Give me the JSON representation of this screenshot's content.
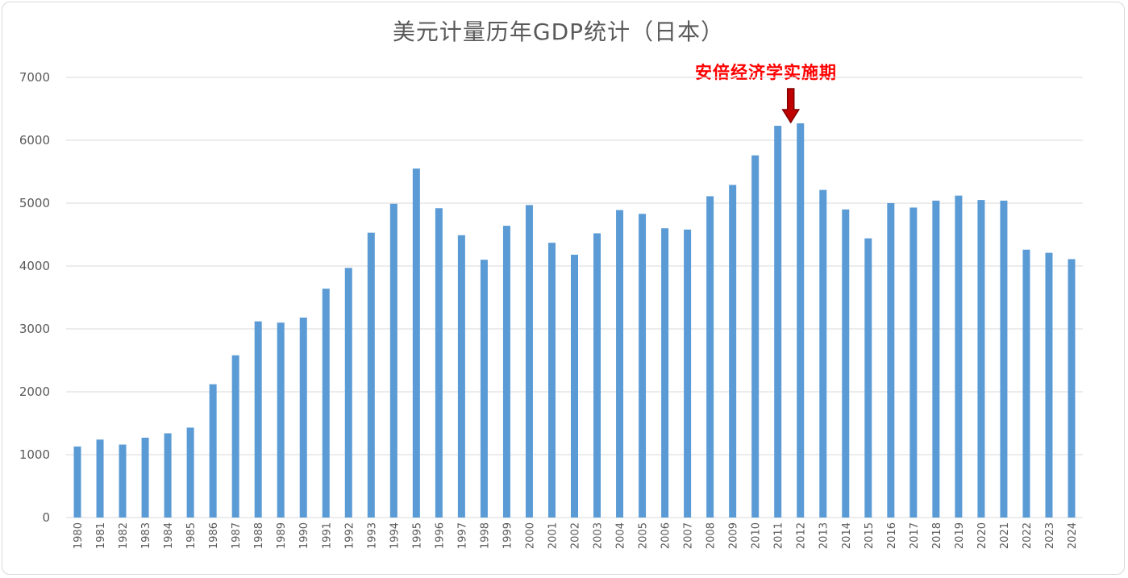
{
  "colors": {
    "bar": "#5b9bd5",
    "grid": "#d9d9d9",
    "annotation": "#ff0000",
    "arrow_fill": "#c00000",
    "arrow_stroke": "#7f0000"
  },
  "chart_data": {
    "type": "bar",
    "title": "美元计量历年GDP统计（日本）",
    "xlabel": "",
    "ylabel": "",
    "ylim": [
      0,
      7000
    ],
    "yticks": [
      0,
      1000,
      2000,
      3000,
      4000,
      5000,
      6000,
      7000
    ],
    "grid": true,
    "categories": [
      "1980",
      "1981",
      "1982",
      "1983",
      "1984",
      "1985",
      "1986",
      "1987",
      "1988",
      "1989",
      "1990",
      "1991",
      "1992",
      "1993",
      "1994",
      "1995",
      "1996",
      "1997",
      "1998",
      "1999",
      "2000",
      "2001",
      "2002",
      "2003",
      "2004",
      "2005",
      "2006",
      "2007",
      "2008",
      "2009",
      "2010",
      "2011",
      "2012",
      "2013",
      "2014",
      "2015",
      "2016",
      "2017",
      "2018",
      "2019",
      "2020",
      "2021",
      "2022",
      "2023",
      "2024"
    ],
    "values": [
      1130,
      1240,
      1160,
      1270,
      1340,
      1430,
      2120,
      2580,
      3120,
      3100,
      3180,
      3640,
      3970,
      4530,
      4990,
      5550,
      4920,
      4490,
      4100,
      4640,
      4970,
      4370,
      4180,
      4520,
      4890,
      4830,
      4600,
      4580,
      5110,
      5290,
      5760,
      6230,
      6270,
      5210,
      4900,
      4440,
      5000,
      4930,
      5040,
      5120,
      5050,
      5040,
      4260,
      4210,
      4110
    ],
    "annotation": {
      "text": "安倍经济学实施期",
      "category": "2012",
      "marker": "down-arrow"
    }
  }
}
